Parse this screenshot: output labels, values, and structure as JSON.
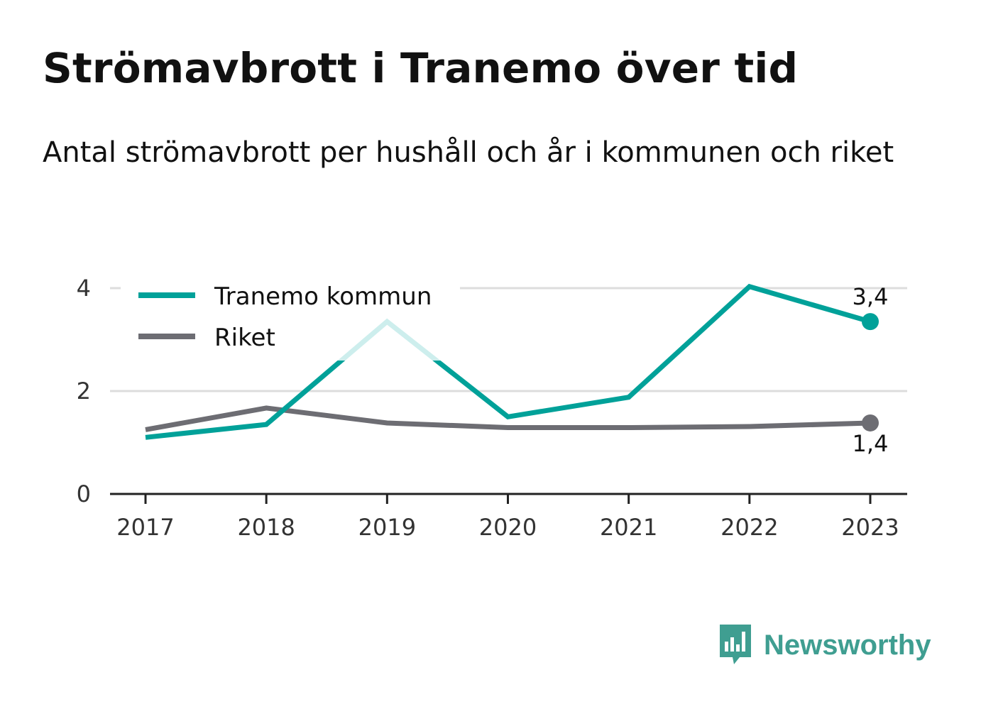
{
  "title": "Strömavbrott i Tranemo över tid",
  "subtitle": "Antal strömavbrott per hushåll och år i kommunen och riket",
  "brand": {
    "name": "Newsworthy"
  },
  "colors": {
    "tranemo": "#00a199",
    "riket": "#6d6d73",
    "tranemo_faded": "#cdeeed",
    "grid": "#dddddd",
    "axis": "#222222",
    "brand": "#3f9e91"
  },
  "chart_data": {
    "type": "line",
    "x": [
      "2017",
      "2018",
      "2019",
      "2020",
      "2021",
      "2022",
      "2023"
    ],
    "ylim": [
      0,
      4.4
    ],
    "yticks": [
      "0",
      "2",
      "4"
    ],
    "ytick_values": [
      0,
      2,
      4
    ],
    "grid": true,
    "legend_position": "top-left",
    "series": [
      {
        "name": "Tranemo kommun",
        "values": [
          1.1,
          1.35,
          3.35,
          1.5,
          1.88,
          4.03,
          3.35
        ],
        "end_label": "3,4",
        "color": "#00a199"
      },
      {
        "name": "Riket",
        "values": [
          1.25,
          1.67,
          1.38,
          1.29,
          1.29,
          1.31,
          1.38
        ],
        "end_label": "1,4",
        "color": "#6d6d73"
      }
    ]
  }
}
